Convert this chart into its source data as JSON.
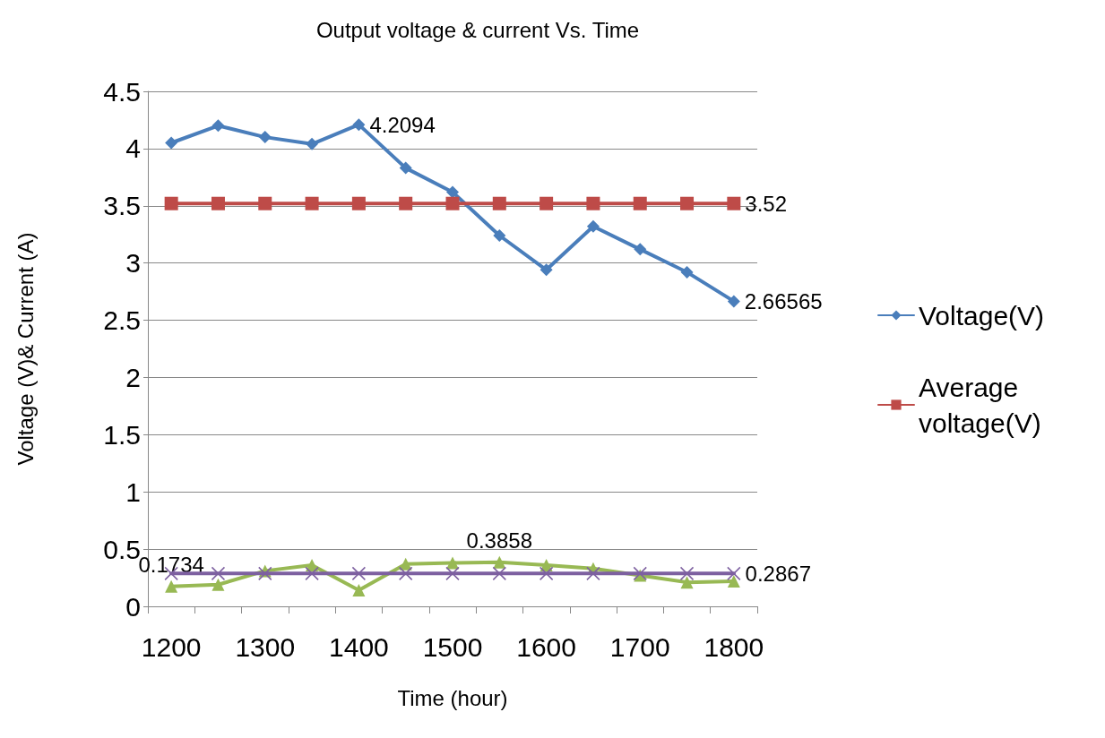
{
  "chart_data": {
    "type": "line",
    "title": "Output voltage & current Vs. Time",
    "xlabel": "Time (hour)",
    "ylabel": "Voltage (V)& Current (A)",
    "categories": [
      "1200",
      null,
      "1300",
      null,
      "1400",
      null,
      "1500",
      null,
      "1600",
      null,
      "1700",
      null,
      "1800"
    ],
    "series": [
      {
        "name": "Voltage(V)",
        "color": "#4a7ebb",
        "marker": "diamond",
        "values": [
          4.05,
          4.2,
          4.1,
          4.04,
          4.2094,
          3.83,
          3.62,
          3.24,
          2.94,
          3.32,
          3.12,
          2.92,
          2.66565
        ],
        "value_labels": [
          null,
          null,
          null,
          null,
          "4.2094",
          null,
          null,
          null,
          null,
          null,
          null,
          null,
          "2.66565"
        ]
      },
      {
        "name": "Average voltage(V)",
        "color": "#be4b48",
        "marker": "square",
        "values": [
          3.52,
          3.52,
          3.52,
          3.52,
          3.52,
          3.52,
          3.52,
          3.52,
          3.52,
          3.52,
          3.52,
          3.52,
          3.52
        ],
        "value_labels": [
          null,
          null,
          null,
          null,
          null,
          null,
          null,
          null,
          null,
          null,
          null,
          null,
          "3.52"
        ]
      },
      {
        "color": "#98b954",
        "marker": "triangle",
        "values": [
          0.1734,
          0.19,
          0.31,
          0.36,
          0.14,
          0.37,
          0.38,
          0.3858,
          0.36,
          0.33,
          0.27,
          0.21,
          0.22
        ],
        "value_labels": [
          "0.1734",
          null,
          null,
          null,
          null,
          null,
          null,
          "0.3858",
          null,
          null,
          null,
          null,
          null
        ]
      },
      {
        "color": "#7d60a0",
        "marker": "cross",
        "values": [
          0.2867,
          0.2867,
          0.2867,
          0.2867,
          0.2867,
          0.2867,
          0.2867,
          0.2867,
          0.2867,
          0.2867,
          0.2867,
          0.2867,
          0.2867
        ],
        "value_labels": [
          null,
          null,
          null,
          null,
          null,
          null,
          null,
          null,
          null,
          null,
          null,
          null,
          "0.2867"
        ]
      }
    ],
    "ylim": [
      0,
      4.5
    ],
    "yticks": [
      0,
      0.5,
      1,
      1.5,
      2,
      2.5,
      3,
      3.5,
      4,
      4.5
    ],
    "grid": "y",
    "legend": "right",
    "line_style": "solid"
  }
}
